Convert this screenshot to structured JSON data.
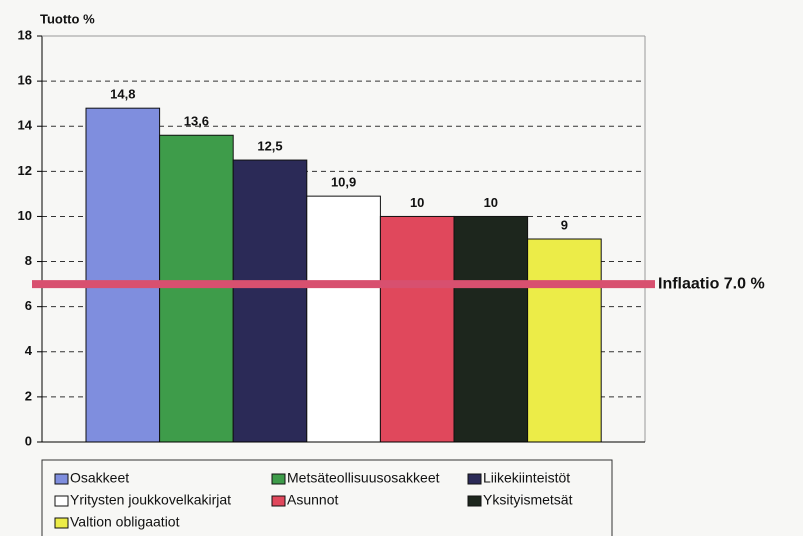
{
  "chart_data": {
    "type": "bar",
    "y_axis_label": "Tuotto %",
    "categories": [
      "Osakkeet",
      "Metsäteollisuusosakkeet",
      "Liikekiinteistöt",
      "Yritysten joukkovelkakirjat",
      "Asunnot",
      "Yksityismetsät",
      "Valtion obligaatiot"
    ],
    "values": [
      14.8,
      13.6,
      12.5,
      10.9,
      10,
      10,
      9
    ],
    "value_labels": [
      "14,8",
      "13,6",
      "12,5",
      "10,9",
      "10",
      "10",
      "9"
    ],
    "colors": [
      "#7f8ede",
      "#3e9c4a",
      "#2b2a57",
      "#ffffff",
      "#e0485c",
      "#1d261d",
      "#ecec48"
    ],
    "ylim": [
      0,
      18
    ],
    "yticks": [
      0,
      2,
      4,
      6,
      8,
      10,
      12,
      14,
      16,
      18
    ],
    "grid": true,
    "reference_line": {
      "value": 7.0,
      "label": "Inflaatio 7.0 %",
      "color": "#d8506f"
    },
    "legend": "bottom"
  }
}
